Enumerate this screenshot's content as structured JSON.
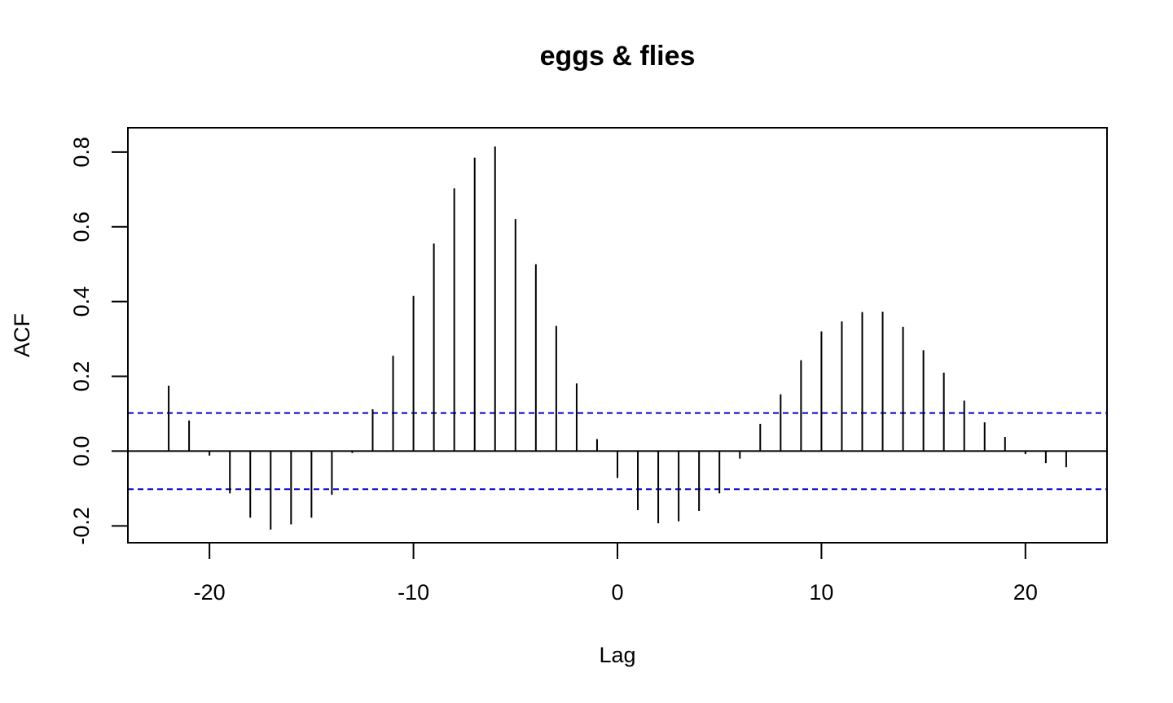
{
  "chart_data": {
    "type": "bar",
    "title": "eggs & flies",
    "xlabel": "Lag",
    "ylabel": "ACF",
    "xlim": [
      -24,
      24
    ],
    "ylim": [
      -0.245,
      0.865
    ],
    "x_ticks": [
      -20,
      -10,
      0,
      10,
      20
    ],
    "x_tick_labels": [
      "-20",
      "-10",
      "0",
      "10",
      "20"
    ],
    "y_ticks": [
      -0.2,
      0.0,
      0.2,
      0.4,
      0.6,
      0.8
    ],
    "y_tick_labels": [
      "-0.2",
      "0.0",
      "0.2",
      "0.4",
      "0.6",
      "0.8"
    ],
    "grid": false,
    "zero_line": 0,
    "confidence_bounds": [
      0.102,
      -0.102
    ],
    "confidence_color": "#0000CC",
    "line_color": "#000000",
    "x": [
      -22,
      -21,
      -20,
      -19,
      -18,
      -17,
      -16,
      -15,
      -14,
      -13,
      -12,
      -11,
      -10,
      -9,
      -8,
      -7,
      -6,
      -5,
      -4,
      -3,
      -2,
      -1,
      0,
      1,
      2,
      3,
      4,
      5,
      6,
      7,
      8,
      9,
      10,
      11,
      12,
      13,
      14,
      15,
      16,
      17,
      18,
      19,
      20,
      21,
      22
    ],
    "values": [
      0.175,
      0.082,
      -0.012,
      -0.113,
      -0.178,
      -0.21,
      -0.196,
      -0.178,
      -0.117,
      -0.005,
      0.112,
      0.255,
      0.415,
      0.555,
      0.703,
      0.785,
      0.815,
      0.621,
      0.5,
      0.335,
      0.181,
      0.032,
      -0.072,
      -0.158,
      -0.193,
      -0.188,
      -0.16,
      -0.113,
      -0.02,
      0.073,
      0.152,
      0.243,
      0.32,
      0.347,
      0.372,
      0.373,
      0.332,
      0.27,
      0.21,
      0.135,
      0.077,
      0.038,
      -0.008,
      -0.032,
      -0.043
    ]
  }
}
